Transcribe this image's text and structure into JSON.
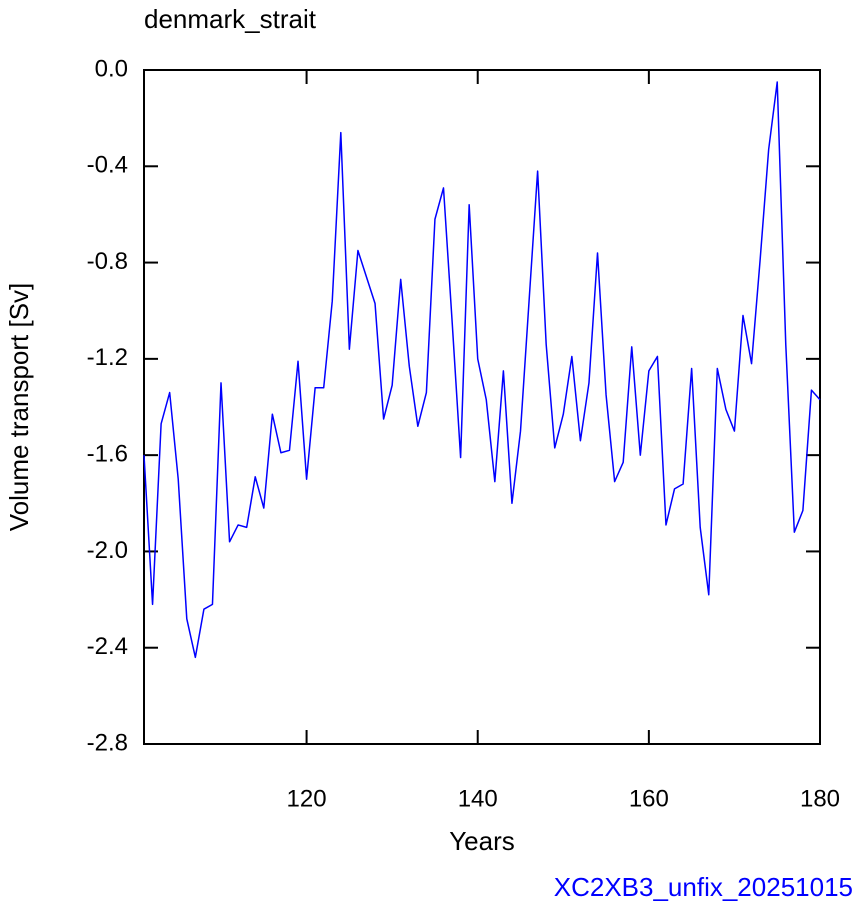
{
  "chart_data": {
    "type": "line",
    "title": "denmark_strait",
    "x_label": "Years",
    "y_label": "Volume transport [Sv]",
    "annotation": "XC2XB3_unfix_20251015",
    "annotation_color": "#0000ff",
    "x": [
      101,
      102,
      103,
      104,
      105,
      106,
      107,
      108,
      109,
      110,
      111,
      112,
      113,
      114,
      115,
      116,
      117,
      118,
      119,
      120,
      121,
      122,
      123,
      124,
      125,
      126,
      127,
      128,
      129,
      130,
      131,
      132,
      133,
      134,
      135,
      136,
      137,
      138,
      139,
      140,
      141,
      142,
      143,
      144,
      145,
      146,
      147,
      148,
      149,
      150,
      151,
      152,
      153,
      154,
      155,
      156,
      157,
      158,
      159,
      160,
      161,
      162,
      163,
      164,
      165,
      166,
      167,
      168,
      169,
      170,
      171,
      172,
      173,
      174,
      175,
      176,
      177,
      178,
      179,
      180
    ],
    "series": [
      {
        "name": "denmark_strait",
        "color": "#0000ff",
        "values": [
          -1.6,
          -2.22,
          -1.47,
          -1.34,
          -1.7,
          -2.28,
          -2.44,
          -2.24,
          -2.22,
          -1.3,
          -1.96,
          -1.89,
          -1.9,
          -1.69,
          -1.82,
          -1.43,
          -1.59,
          -1.58,
          -1.21,
          -1.7,
          -1.32,
          -1.32,
          -0.96,
          -0.26,
          -1.16,
          -0.75,
          -0.86,
          -0.97,
          -1.45,
          -1.31,
          -0.87,
          -1.23,
          -1.48,
          -1.34,
          -0.62,
          -0.49,
          -1.04,
          -1.61,
          -0.56,
          -1.2,
          -1.37,
          -1.71,
          -1.25,
          -1.8,
          -1.5,
          -0.96,
          -0.42,
          -1.14,
          -1.57,
          -1.43,
          -1.19,
          -1.54,
          -1.3,
          -0.76,
          -1.35,
          -1.71,
          -1.63,
          -1.15,
          -1.6,
          -1.25,
          -1.19,
          -1.89,
          -1.74,
          -1.72,
          -1.24,
          -1.9,
          -2.18,
          -1.24,
          -1.41,
          -1.5,
          -1.02,
          -1.22,
          -0.79,
          -0.33,
          -0.05,
          -1.14,
          -1.92,
          -1.83,
          -1.33,
          -1.37
        ]
      }
    ],
    "xlim": [
      101,
      180
    ],
    "xticks": [
      120,
      140,
      160,
      180
    ],
    "ylim": [
      -2.8,
      0
    ],
    "yticks": [
      {
        "value": -2.8,
        "label": "-2.8"
      },
      {
        "value": -2.4,
        "label": "-2.4"
      },
      {
        "value": -2,
        "label": "-2.0"
      },
      {
        "value": -1.6,
        "label": "-1.6"
      },
      {
        "value": -1.2,
        "label": "-1.2"
      },
      {
        "value": -0.8,
        "label": "-0.8"
      },
      {
        "value": -0.4,
        "label": "-0.4"
      },
      {
        "value": 0,
        "label": "0.0"
      }
    ],
    "grid": false
  }
}
